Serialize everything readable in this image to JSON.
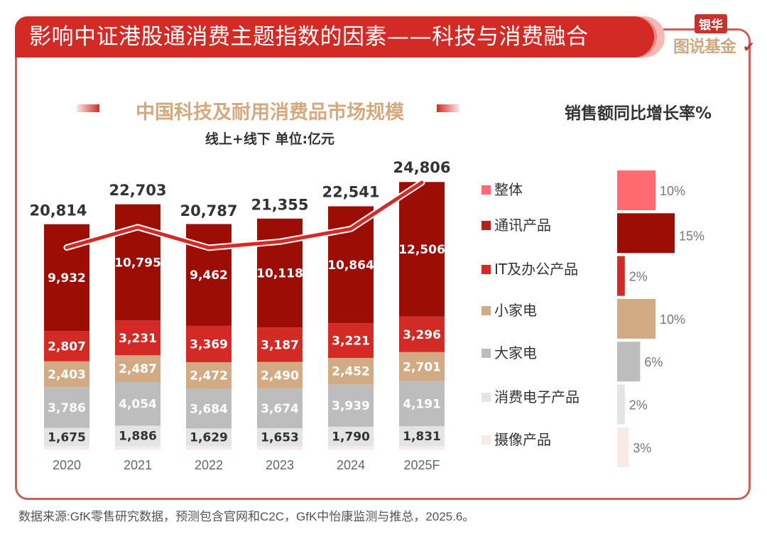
{
  "header": {
    "title": "影响中证港股通消费主题指数的因素——科技与消费融合",
    "logo_top": "银华",
    "logo_bottom": "图说基金",
    "logo_check": "✔"
  },
  "colors": {
    "title_red": "#d42a25",
    "frame": "#c9605a",
    "overall": "#ff6b70",
    "telecom": "#9b0d05",
    "it_office": "#d42a25",
    "small_appliance": "#d2ab84",
    "large_appliance": "#bdbdbd",
    "consumer_electronics": "#e4e4e4",
    "camera": "#f9eaea",
    "line": "#d42a25"
  },
  "footer": {
    "source": "数据来源:GfK零售研究数据，预测包含官网和C2C，GfK中怡康监测与推总，2025.6。"
  },
  "chart_data": [
    {
      "type": "bar",
      "stacked": true,
      "title": "中国科技及耐用消费品市场规模",
      "subtitle": "线上+线下 单位:亿元",
      "xlabel": "",
      "ylabel": "",
      "categories": [
        "2020",
        "2021",
        "2022",
        "2023",
        "2024",
        "2025F"
      ],
      "series": [
        {
          "name": "摄像产品",
          "key": "camera",
          "values": [
            null,
            null,
            null,
            null,
            null,
            null
          ],
          "note": "thin unlabeled segment"
        },
        {
          "name": "消费电子产品",
          "key": "consumer_electronics",
          "values": [
            1675,
            1886,
            1629,
            1653,
            1790,
            1831
          ],
          "labels": [
            "1,675",
            "1,886",
            "1,629",
            "1,653",
            "1,790",
            "1,831"
          ]
        },
        {
          "name": "大家电",
          "key": "large_appliance",
          "values": [
            3786,
            4054,
            3684,
            3674,
            3939,
            4191
          ],
          "labels": [
            "3,786",
            "4,054",
            "3,684",
            "3,674",
            "3,939",
            "4,191"
          ]
        },
        {
          "name": "小家电",
          "key": "small_appliance",
          "values": [
            2403,
            2487,
            2472,
            2490,
            2452,
            2701
          ],
          "labels": [
            "2,403",
            "2,487",
            "2,472",
            "2,490",
            "2,452",
            "2,701"
          ]
        },
        {
          "name": "IT及办公产品",
          "key": "it_office",
          "values": [
            2807,
            3231,
            3369,
            3187,
            3221,
            3296
          ],
          "labels": [
            "2,807",
            "3,231",
            "3,369",
            "3,187",
            "3,221",
            "3,296"
          ]
        },
        {
          "name": "通讯产品",
          "key": "telecom",
          "values": [
            9932,
            10795,
            9462,
            10118,
            10864,
            12506
          ],
          "labels": [
            "9,932",
            "10,795",
            "9,462",
            "10,118",
            "10,864",
            "12,506"
          ]
        }
      ],
      "totals": {
        "name": "整体",
        "type": "line",
        "values": [
          20814,
          22703,
          20787,
          21355,
          22541,
          24806
        ],
        "labels": [
          "20,814",
          "22,703",
          "20,787",
          "21,355",
          "22,541",
          "24,806"
        ]
      },
      "grid": false,
      "legend": "right"
    },
    {
      "type": "bar",
      "orientation": "horizontal",
      "title": "销售额同比增长率%",
      "categories": [
        "整体",
        "通讯产品",
        "IT及办公产品",
        "小家电",
        "大家电",
        "消费电子产品",
        "摄像产品"
      ],
      "keys": [
        "overall",
        "telecom",
        "it_office",
        "small_appliance",
        "large_appliance",
        "consumer_electronics",
        "camera"
      ],
      "values": [
        10,
        15,
        2,
        10,
        6,
        2,
        3
      ],
      "labels": [
        "10%",
        "15%",
        "2%",
        "10%",
        "6%",
        "2%",
        "3%"
      ],
      "unit": "%",
      "grid": false
    }
  ]
}
